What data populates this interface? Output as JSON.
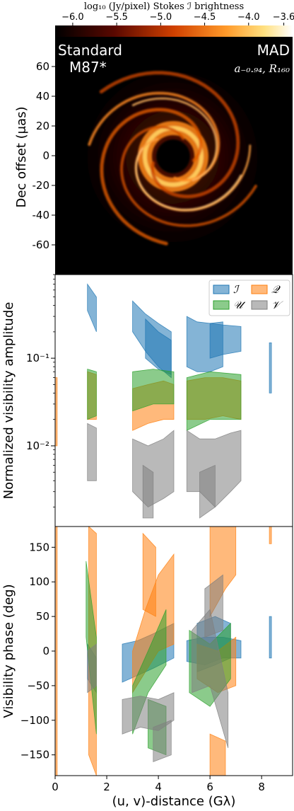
{
  "chart_data": [
    {
      "type": "heatmap",
      "panel": "image",
      "colorbar": {
        "label": "log₁₀ (Jy/pixel) Stokes ℐ brightness",
        "ticks": [
          "−6.0",
          "−5.5",
          "−5.0",
          "−4.5",
          "−4.0",
          "−3.6"
        ],
        "range": [
          -6.2,
          -3.5
        ],
        "colormap": "afmhot"
      },
      "ylabel": "Dec offset (μas)",
      "yticks": [
        "60",
        "40",
        "20",
        "0",
        "-20",
        "-40",
        "-60"
      ],
      "ytick_values": [
        60,
        40,
        20,
        0,
        -20,
        -40,
        -60
      ],
      "ylim": [
        -80,
        80
      ],
      "annotations": {
        "left_line1": "Standard",
        "left_line2": "M87*",
        "right_line1": "MAD",
        "right_line2": "a₋₀.₉₄, R₁₆₀"
      }
    },
    {
      "type": "area",
      "panel": "amplitude",
      "ylabel": "Normalized visibility amplitude",
      "yscale": "log",
      "ylim": [
        0.0012,
        0.9
      ],
      "yticks": [
        "10⁻¹",
        "10⁻²"
      ],
      "ytick_values": [
        0.1,
        0.01
      ],
      "legend": {
        "position": "top-right",
        "entries": [
          {
            "label": "ℐ",
            "color": "#1f77b4"
          },
          {
            "label": "𝒬",
            "color": "#ff7f0e"
          },
          {
            "label": "𝒰",
            "color": "#2ca02c"
          },
          {
            "label": "𝒱",
            "color": "#7f7f7f"
          }
        ]
      },
      "series": [
        {
          "name": "ℐ",
          "color": "#1f77b4",
          "bands": [
            {
              "x": [
                1.25,
                1.6
              ],
              "lo": [
                0.35,
                0.2
              ],
              "hi": [
                0.7,
                0.5
              ]
            },
            {
              "x": [
                3.0,
                3.5,
                4.0,
                4.5
              ],
              "lo": [
                0.2,
                0.12,
                0.08,
                0.06
              ],
              "hi": [
                0.45,
                0.32,
                0.25,
                0.2
              ]
            },
            {
              "x": [
                3.5,
                4.0,
                4.5
              ],
              "lo": [
                0.1,
                0.075,
                0.065
              ],
              "hi": [
                0.28,
                0.2,
                0.16
              ]
            },
            {
              "x": [
                5.1,
                5.5,
                6.0,
                6.5
              ],
              "lo": [
                0.08,
                0.07,
                0.07,
                0.08
              ],
              "hi": [
                0.3,
                0.26,
                0.25,
                0.26
              ]
            },
            {
              "x": [
                6.0,
                6.5,
                7.2
              ],
              "lo": [
                0.1,
                0.11,
                0.12
              ],
              "hi": [
                0.25,
                0.24,
                0.23
              ]
            },
            {
              "x": [
                8.3,
                8.38
              ],
              "lo": [
                0.04,
                0.04
              ],
              "hi": [
                0.15,
                0.15
              ]
            }
          ]
        },
        {
          "name": "𝒬",
          "color": "#ff7f0e",
          "bands": [
            {
              "x": [
                0.0,
                0.08
              ],
              "lo": [
                0.01,
                0.01
              ],
              "hi": [
                0.06,
                0.06
              ]
            },
            {
              "x": [
                1.25,
                1.6
              ],
              "lo": [
                0.02,
                0.02
              ],
              "hi": [
                0.07,
                0.065
              ]
            },
            {
              "x": [
                3.0,
                3.6,
                4.2,
                4.6
              ],
              "lo": [
                0.015,
                0.018,
                0.02,
                0.02
              ],
              "hi": [
                0.045,
                0.05,
                0.055,
                0.05
              ]
            },
            {
              "x": [
                5.1,
                5.8,
                6.5,
                7.2
              ],
              "lo": [
                0.02,
                0.02,
                0.022,
                0.02
              ],
              "hi": [
                0.055,
                0.06,
                0.06,
                0.055
              ]
            }
          ]
        },
        {
          "name": "𝒰",
          "color": "#2ca02c",
          "bands": [
            {
              "x": [
                1.25,
                1.6
              ],
              "lo": [
                0.02,
                0.022
              ],
              "hi": [
                0.075,
                0.07
              ]
            },
            {
              "x": [
                3.0,
                3.8,
                4.6
              ],
              "lo": [
                0.025,
                0.03,
                0.03
              ],
              "hi": [
                0.07,
                0.075,
                0.07
              ]
            },
            {
              "x": [
                5.1,
                6.0,
                7.2
              ],
              "lo": [
                0.015,
                0.02,
                0.02
              ],
              "hi": [
                0.06,
                0.07,
                0.065
              ]
            }
          ]
        },
        {
          "name": "𝒱",
          "color": "#7f7f7f",
          "bands": [
            {
              "x": [
                1.25,
                1.6
              ],
              "lo": [
                0.004,
                0.004
              ],
              "hi": [
                0.018,
                0.016
              ]
            },
            {
              "x": [
                3.0,
                3.6,
                4.2,
                4.6
              ],
              "lo": [
                0.003,
                0.002,
                0.0025,
                0.003
              ],
              "hi": [
                0.012,
                0.01,
                0.012,
                0.015
              ]
            },
            {
              "x": [
                3.4,
                3.8
              ],
              "lo": [
                0.0015,
                0.0015
              ],
              "hi": [
                0.006,
                0.005
              ]
            },
            {
              "x": [
                5.1,
                5.6,
                6.2,
                6.8,
                7.2
              ],
              "lo": [
                0.003,
                0.003,
                0.002,
                0.003,
                0.004
              ],
              "hi": [
                0.015,
                0.012,
                0.012,
                0.014,
                0.015
              ]
            },
            {
              "x": [
                5.6,
                6.2
              ],
              "lo": [
                0.0015,
                0.002
              ],
              "hi": [
                0.005,
                0.006
              ]
            }
          ]
        }
      ]
    },
    {
      "type": "area",
      "panel": "phase",
      "xlabel": "(u, v)-distance (Gλ)",
      "ylabel": "Visibility phase (deg)",
      "xlim": [
        0,
        9.2
      ],
      "ylim": [
        -180,
        180
      ],
      "xticks": [
        "0",
        "2",
        "4",
        "6",
        "8"
      ],
      "xtick_values": [
        0,
        2,
        4,
        6,
        8
      ],
      "yticks": [
        "150",
        "100",
        "50",
        "0",
        "−50",
        "−100",
        "−150"
      ],
      "ytick_values": [
        150,
        100,
        50,
        0,
        -50,
        -100,
        -150
      ],
      "series": [
        {
          "name": "ℐ",
          "color": "#1f77b4",
          "bands": [
            {
              "x": [
                1.25,
                1.6
              ],
              "lo": [
                -40,
                -60
              ],
              "hi": [
                10,
                -10
              ]
            },
            {
              "x": [
                2.6,
                3.2,
                3.8,
                4.6
              ],
              "lo": [
                -45,
                -35,
                -25,
                -10
              ],
              "hi": [
                10,
                15,
                25,
                40
              ]
            },
            {
              "x": [
                5.1,
                5.8,
                6.5,
                7.2
              ],
              "lo": [
                -15,
                -20,
                -10,
                -10
              ],
              "hi": [
                15,
                20,
                20,
                15
              ]
            },
            {
              "x": [
                5.5,
                6.2,
                6.8
              ],
              "lo": [
                -30,
                -20,
                -10
              ],
              "hi": [
                40,
                50,
                40
              ]
            },
            {
              "x": [
                8.3,
                8.38
              ],
              "lo": [
                -10,
                -10
              ],
              "hi": [
                50,
                50
              ]
            }
          ]
        },
        {
          "name": "𝒬",
          "color": "#ff7f0e",
          "bands": [
            {
              "x": [
                0.0,
                0.08
              ],
              "lo": [
                -180,
                -180
              ],
              "hi": [
                180,
                180
              ]
            },
            {
              "x": [
                1.3,
                1.6
              ],
              "lo": [
                -150,
                -180
              ],
              "hi": [
                180,
                170
              ]
            },
            {
              "x": [
                3.0,
                3.5,
                4.0,
                4.6
              ],
              "lo": [
                -60,
                -30,
                0,
                10
              ],
              "hi": [
                0,
                60,
                110,
                140
              ]
            },
            {
              "x": [
                3.4,
                3.9
              ],
              "lo": [
                60,
                50
              ],
              "hi": [
                170,
                150
              ]
            },
            {
              "x": [
                5.5,
                6.3,
                7.0
              ],
              "lo": [
                -40,
                -60,
                -50
              ],
              "hi": [
                10,
                0,
                20
              ]
            },
            {
              "x": [
                6.0,
                6.6,
                7.0
              ],
              "lo": [
                50,
                90,
                110
              ],
              "hi": [
                180,
                180,
                180
              ]
            },
            {
              "x": [
                6.0,
                6.6
              ],
              "lo": [
                -180,
                -180
              ],
              "hi": [
                -120,
                -130
              ]
            },
            {
              "x": [
                8.3,
                8.38
              ],
              "lo": [
                155,
                155
              ],
              "hi": [
                180,
                180
              ]
            }
          ]
        },
        {
          "name": "𝒰",
          "color": "#2ca02c",
          "bands": [
            {
              "x": [
                1.2,
                1.6
              ],
              "lo": [
                20,
                -120
              ],
              "hi": [
                130,
                20
              ]
            },
            {
              "x": [
                3.0,
                3.6,
                4.3
              ],
              "lo": [
                -120,
                -60,
                -20
              ],
              "hi": [
                -50,
                0,
                60
              ]
            },
            {
              "x": [
                3.6,
                4.3
              ],
              "lo": [
                -140,
                -150
              ],
              "hi": [
                -70,
                -80
              ]
            },
            {
              "x": [
                5.2,
                6.0,
                6.8
              ],
              "lo": [
                -60,
                -80,
                -40
              ],
              "hi": [
                30,
                10,
                40
              ]
            }
          ]
        },
        {
          "name": "𝒱",
          "color": "#7f7f7f",
          "bands": [
            {
              "x": [
                1.25,
                1.6
              ],
              "lo": [
                -60,
                -50
              ],
              "hi": [
                0,
                10
              ]
            },
            {
              "x": [
                2.6,
                3.3,
                4.0,
                4.6
              ],
              "lo": [
                -120,
                -110,
                -115,
                -100
              ],
              "hi": [
                -70,
                -65,
                -70,
                -60
              ]
            },
            {
              "x": [
                3.8,
                4.5
              ],
              "lo": [
                -160,
                -150
              ],
              "hi": [
                -110,
                -100
              ]
            },
            {
              "x": [
                5.3,
                6.0,
                6.7
              ],
              "lo": [
                -60,
                -50,
                -140
              ],
              "hi": [
                30,
                60,
                -60
              ]
            },
            {
              "x": [
                5.8,
                6.5
              ],
              "lo": [
                20,
                30
              ],
              "hi": [
                90,
                110
              ]
            }
          ]
        }
      ]
    }
  ]
}
